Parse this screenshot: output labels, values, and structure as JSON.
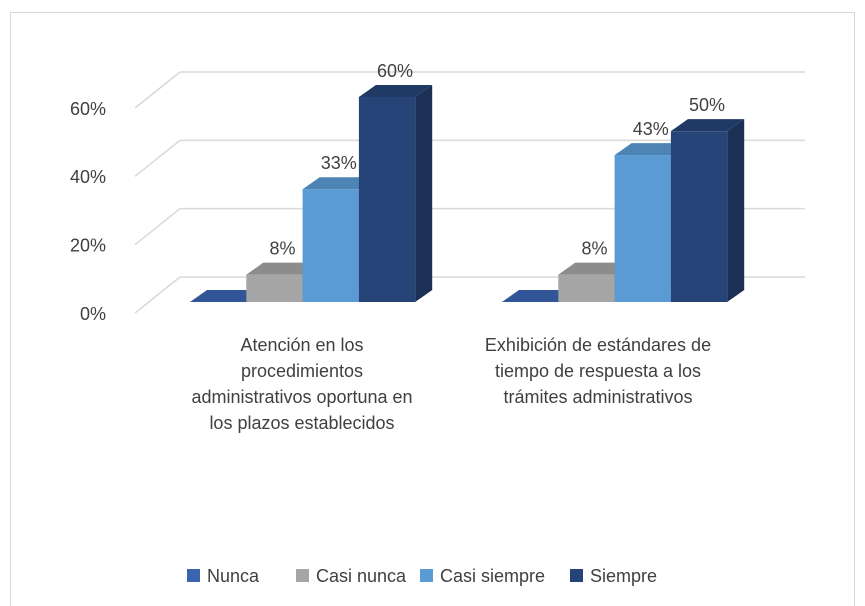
{
  "chart_data": {
    "type": "bar3d",
    "categories": [
      "Atención en los procedimientos administrativos oportuna en los plazos establecidos",
      "Exhibición de estándares de tiempo de respuesta a los trámites administrativos"
    ],
    "series": [
      {
        "name": "Nunca",
        "color": "#3a64b0",
        "values": [
          0,
          0
        ]
      },
      {
        "name": "Casi nunca",
        "color": "#a5a5a5",
        "values": [
          8,
          8
        ],
        "value_labels": [
          "8%",
          "8%"
        ]
      },
      {
        "name": "Casi siempre",
        "color": "#5b9bd5",
        "values": [
          33,
          43
        ],
        "value_labels": [
          "33%",
          "43%"
        ]
      },
      {
        "name": "Siempre",
        "color": "#264478",
        "values": [
          60,
          50
        ],
        "value_labels": [
          "60%",
          "50%"
        ]
      }
    ],
    "ylim": [
      0,
      60
    ],
    "yticks": [
      {
        "value": 0,
        "label": "0%"
      },
      {
        "value": 20,
        "label": "20%"
      },
      {
        "value": 40,
        "label": "40%"
      },
      {
        "value": 60,
        "label": "60%"
      }
    ],
    "grid": true,
    "legend": "bottom"
  }
}
